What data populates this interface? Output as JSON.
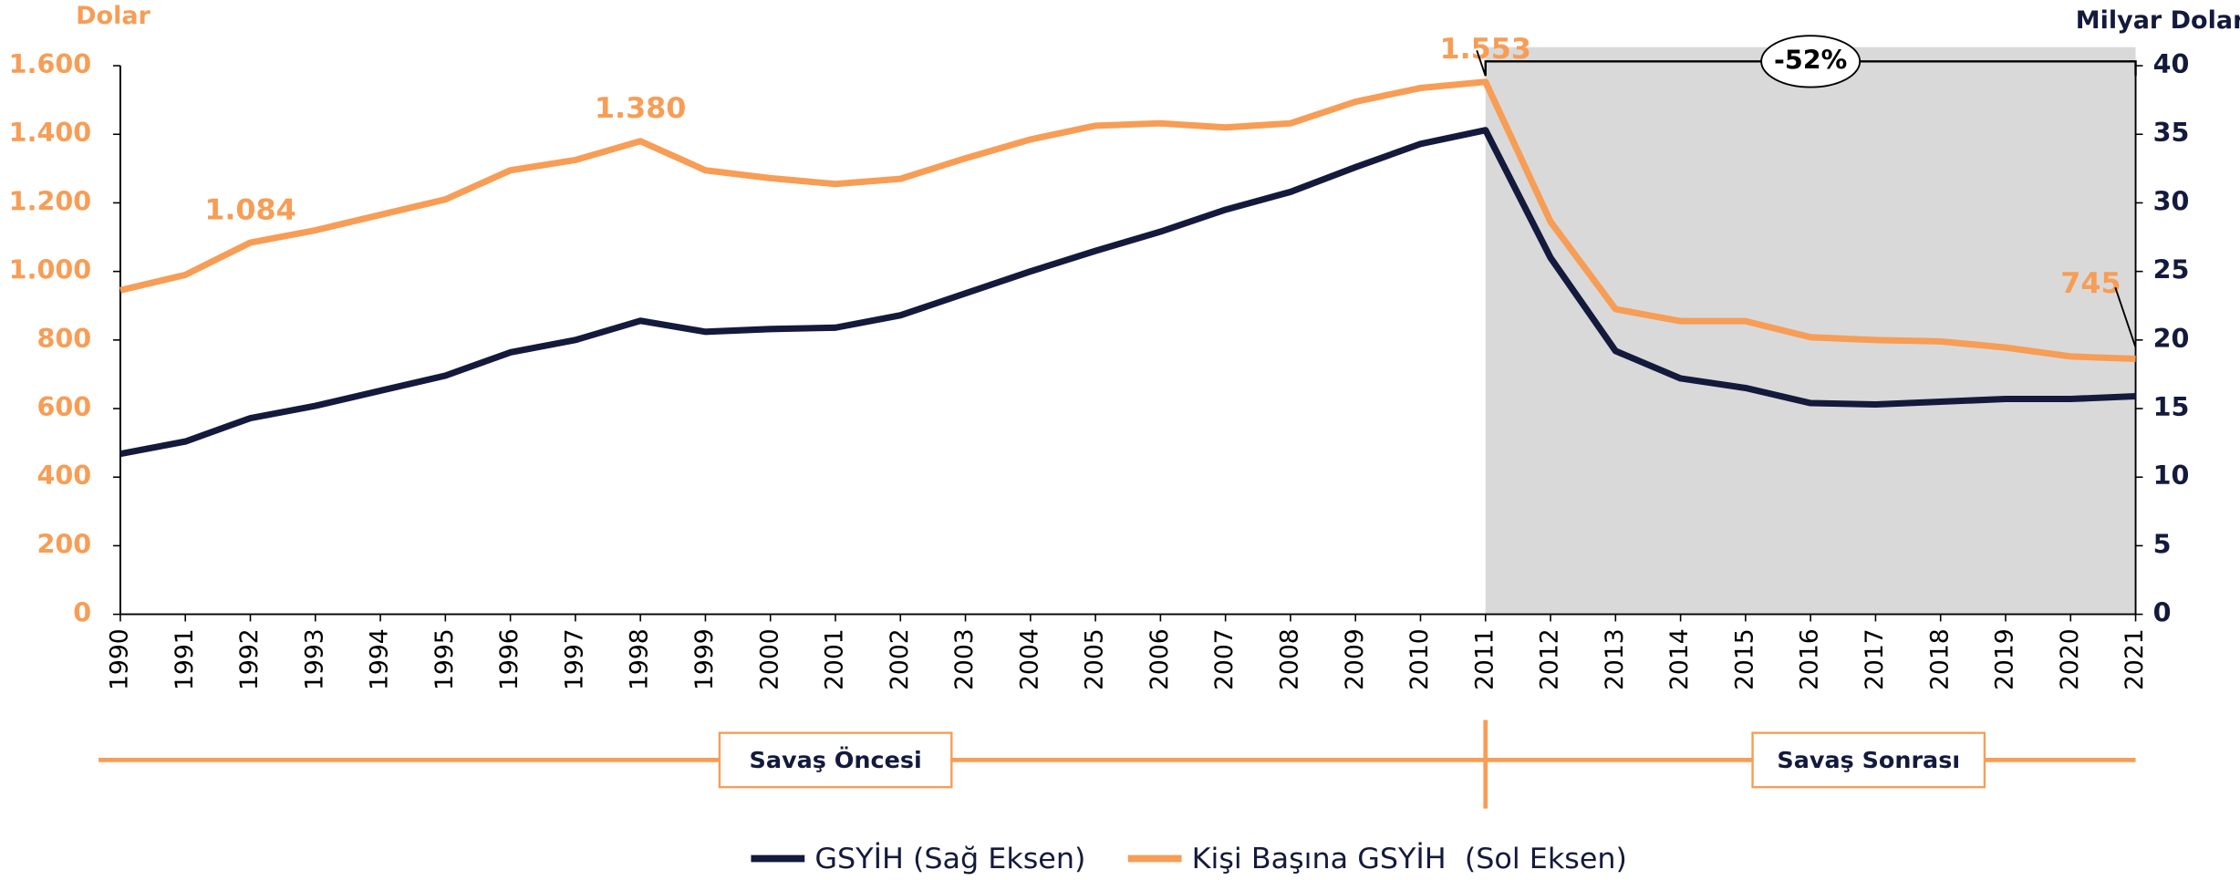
{
  "chart_data": {
    "type": "line",
    "y_label": "Dolar",
    "y2_label": "Milyar Dolar",
    "categories": [
      "1990",
      "1991",
      "1992",
      "1993",
      "1994",
      "1995",
      "1996",
      "1997",
      "1998",
      "1999",
      "2000",
      "2001",
      "2002",
      "2003",
      "2004",
      "2005",
      "2006",
      "2007",
      "2008",
      "2009",
      "2010",
      "2011",
      "2012",
      "2013",
      "2014",
      "2015",
      "2016",
      "2017",
      "2018",
      "2019",
      "2020",
      "2021"
    ],
    "series": [
      {
        "name": "GSYİH (Sağ Eksen)",
        "color": "#141a3c",
        "axis": "y2",
        "values": [
          11.7,
          12.6,
          14.3,
          15.2,
          16.3,
          17.4,
          19.1,
          20.0,
          21.4,
          20.6,
          20.8,
          20.9,
          21.8,
          23.4,
          25.0,
          26.5,
          27.9,
          29.5,
          30.8,
          32.6,
          34.3,
          35.3,
          26.0,
          19.2,
          17.2,
          16.5,
          15.4,
          15.3,
          15.5,
          15.7,
          15.7,
          15.9
        ]
      },
      {
        "name": "Kişi Başına GSYİH  (Sol Eksen)",
        "color": "#f79d55",
        "values": [
          945,
          990,
          1084,
          1120,
          1165,
          1210,
          1295,
          1325,
          1380,
          1295,
          1272,
          1255,
          1270,
          1330,
          1385,
          1425,
          1432,
          1420,
          1432,
          1495,
          1535,
          1553,
          1145,
          890,
          855,
          855,
          808,
          800,
          796,
          778,
          752,
          745
        ],
        "value_labels": [
          null,
          null,
          "1.084",
          null,
          null,
          null,
          null,
          null,
          "1.380",
          null,
          null,
          null,
          null,
          null,
          null,
          null,
          null,
          null,
          null,
          null,
          null,
          "1.553",
          null,
          null,
          null,
          null,
          null,
          null,
          null,
          null,
          null,
          "745"
        ]
      }
    ],
    "ylim": [
      0,
      1600
    ],
    "yticks": [
      0,
      {
        "value": 200,
        "label": "200"
      },
      {
        "value": 400,
        "label": "400"
      },
      {
        "value": 600,
        "label": "600"
      },
      {
        "value": 800,
        "label": "800"
      },
      {
        "value": 1000,
        "label": "1.000"
      },
      {
        "value": 1200,
        "label": "1.200"
      },
      {
        "value": 1400,
        "label": "1.400"
      },
      {
        "value": 1600,
        "label": "1.600"
      }
    ],
    "y2lim": [
      0,
      40
    ],
    "y2ticks": [
      0,
      5,
      10,
      15,
      20,
      25,
      30,
      35,
      40
    ],
    "periods": [
      {
        "label": "Savaş Öncesi",
        "start": "1990",
        "end": "2011"
      },
      {
        "label": "Savaş Sonrası",
        "start": "2011",
        "end": "2021",
        "shaded": true
      }
    ],
    "change": {
      "label": "-52%",
      "from": "2011",
      "to": "2021"
    }
  }
}
